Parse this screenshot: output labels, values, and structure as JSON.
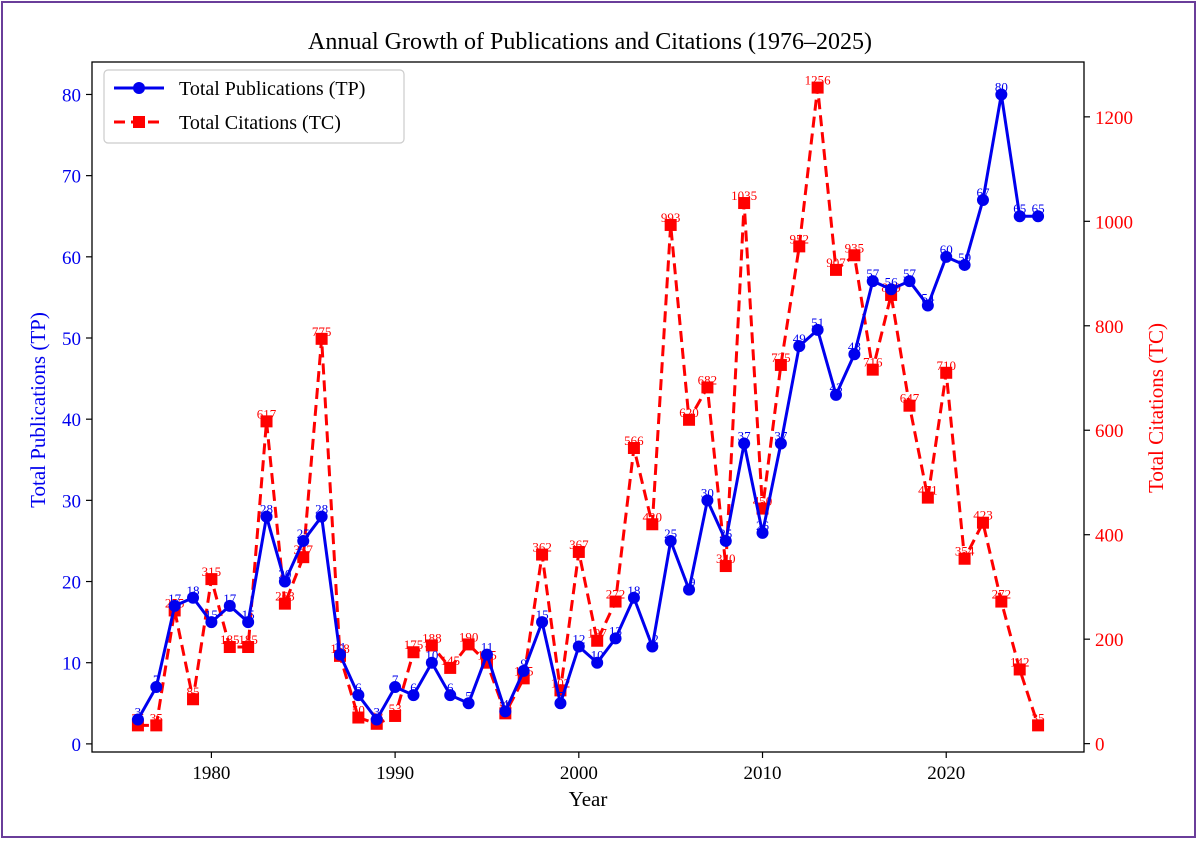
{
  "chart_data": {
    "type": "line",
    "title": "Annual Growth of Publications and Citations (1976–2025)",
    "xlabel": "Year",
    "ylabel_left": "Total Publications (TP)",
    "ylabel_right": "Total Citations (TC)",
    "xlim": [
      1973.5,
      2027.5
    ],
    "ylim_left": [
      -1,
      84
    ],
    "ylim_right": [
      -16,
      1305
    ],
    "x_ticks": [
      1980,
      1990,
      2000,
      2010,
      2020
    ],
    "y_ticks_left": [
      0,
      10,
      20,
      30,
      40,
      50,
      60,
      70,
      80
    ],
    "y_ticks_right": [
      0,
      200,
      400,
      600,
      800,
      1000,
      1200
    ],
    "legend_position": "top-left",
    "grid": false,
    "x": [
      1976,
      1977,
      1978,
      1979,
      1980,
      1981,
      1982,
      1983,
      1984,
      1985,
      1986,
      1987,
      1988,
      1989,
      1990,
      1991,
      1992,
      1993,
      1994,
      1995,
      1996,
      1997,
      1998,
      1999,
      2000,
      2001,
      2002,
      2003,
      2004,
      2005,
      2006,
      2007,
      2008,
      2009,
      2010,
      2011,
      2012,
      2013,
      2014,
      2015,
      2016,
      2017,
      2018,
      2019,
      2020,
      2021,
      2022,
      2023,
      2024,
      2025
    ],
    "series": [
      {
        "name": "Total Publications (TP)",
        "axis": "left",
        "color": "#0000ee",
        "marker": "circle",
        "linestyle": "solid",
        "values": [
          3,
          7,
          17,
          18,
          15,
          17,
          15,
          28,
          20,
          25,
          28,
          11,
          6,
          3,
          7,
          6,
          10,
          6,
          5,
          11,
          4,
          9,
          15,
          5,
          12,
          10,
          13,
          18,
          12,
          25,
          19,
          30,
          25,
          37,
          26,
          37,
          49,
          51,
          43,
          48,
          57,
          56,
          57,
          54,
          60,
          59,
          67,
          80,
          65,
          65
        ],
        "labels": [
          "3",
          "7",
          "17",
          "18",
          "15",
          "17",
          "15",
          "28",
          "20",
          "25",
          "28",
          "11",
          "6",
          "3",
          "7",
          "6",
          "10",
          "6",
          "5",
          "11",
          "4",
          "9",
          "15",
          "5",
          "12",
          "10",
          "13",
          "18",
          "12",
          "25",
          "19",
          "30",
          "25",
          "37",
          "26",
          "37",
          "49",
          "51",
          "43",
          "48",
          "57",
          "56",
          "57",
          "54",
          "60",
          "59",
          "67",
          "80",
          "65",
          "65"
        ]
      },
      {
        "name": "Total Citations (TC)",
        "axis": "right",
        "color": "#ff0000",
        "marker": "square",
        "linestyle": "dashed",
        "values": [
          35,
          35,
          255,
          85,
          315,
          185,
          185,
          617,
          268,
          357,
          775,
          168,
          50,
          38,
          53,
          175,
          188,
          145,
          190,
          155,
          58,
          125,
          362,
          102,
          367,
          197,
          272,
          566,
          420,
          993,
          620,
          682,
          340,
          1035,
          450,
          725,
          952,
          1256,
          907,
          935,
          716,
          859,
          647,
          471,
          710,
          354,
          423,
          272,
          142,
          35
        ],
        "labels": [
          "35",
          "35",
          "255",
          "85",
          "315",
          "185",
          "185",
          "617",
          "268",
          "357",
          "775",
          "168",
          "50",
          "38",
          "53",
          "175",
          "188",
          "145",
          "190",
          "155",
          "58",
          "125",
          "362",
          "102",
          "367",
          "197",
          "272",
          "566",
          "420",
          "993",
          "620",
          "682",
          "340",
          "1035",
          "450",
          "725",
          "952",
          "1256",
          "907",
          "935",
          "716",
          "859",
          "647",
          "471",
          "710",
          "354",
          "423",
          "272",
          "142",
          "35"
        ]
      }
    ]
  }
}
